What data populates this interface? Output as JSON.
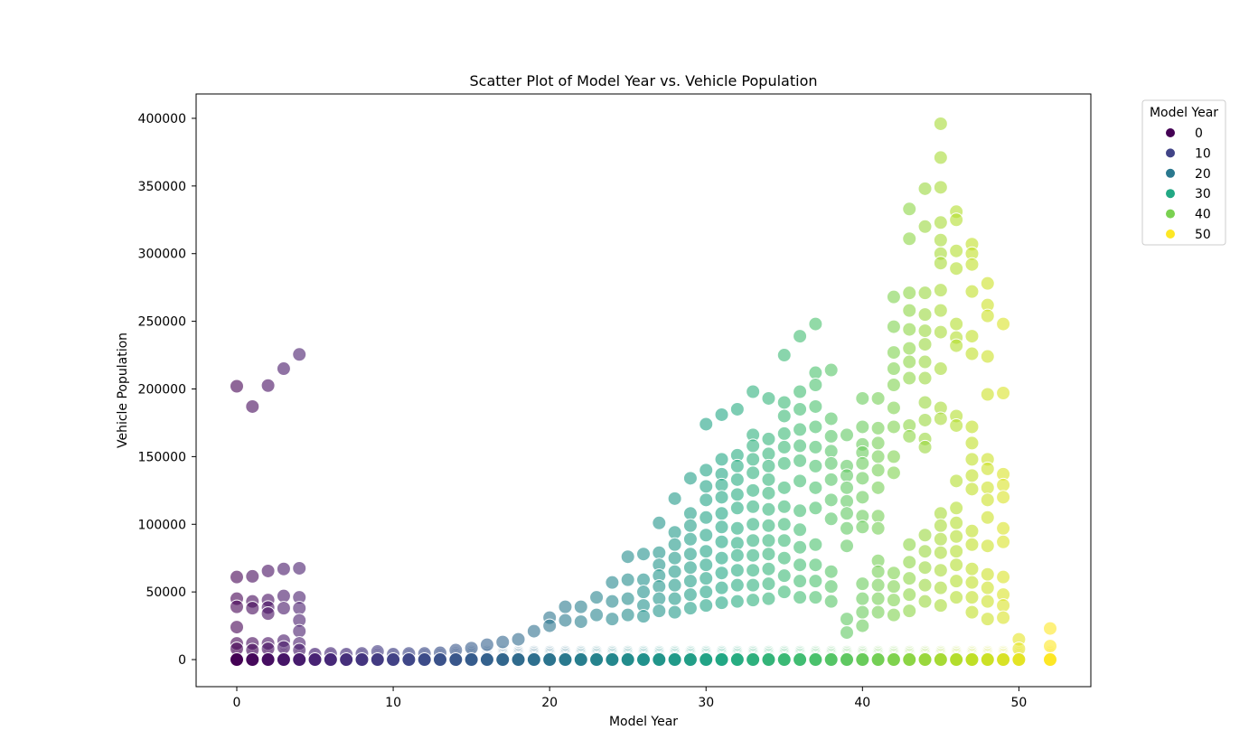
{
  "chart_data": {
    "type": "scatter",
    "title": "Scatter Plot of Model Year vs. Vehicle Population",
    "xlabel": "Model Year",
    "ylabel": "Vehicle Population",
    "xlim": [
      -2.6,
      54.6
    ],
    "ylim": [
      -20000,
      418000
    ],
    "xticks": [
      0,
      10,
      20,
      30,
      40,
      50
    ],
    "yticks": [
      0,
      50000,
      100000,
      150000,
      200000,
      250000,
      300000,
      350000,
      400000
    ],
    "grid": false,
    "colormap": "viridis",
    "hue_range": [
      0,
      52
    ],
    "marker_opacity": 0.6,
    "legend": {
      "title": "Model Year",
      "placement": "outside-top-right",
      "entries": [
        {
          "label": "0",
          "color": "#440154"
        },
        {
          "label": "10",
          "color": "#414487"
        },
        {
          "label": "20",
          "color": "#2a788e"
        },
        {
          "label": "30",
          "color": "#22a884"
        },
        {
          "label": "40",
          "color": "#7ad151"
        },
        {
          "label": "50",
          "color": "#fde725"
        }
      ]
    },
    "points": [
      [
        0,
        202000
      ],
      [
        1,
        187000
      ],
      [
        2,
        202500
      ],
      [
        3,
        215000
      ],
      [
        4,
        225500
      ],
      [
        0,
        61000
      ],
      [
        1,
        61500
      ],
      [
        2,
        65500
      ],
      [
        3,
        67000
      ],
      [
        4,
        67500
      ],
      [
        0,
        45000
      ],
      [
        1,
        43000
      ],
      [
        2,
        44000
      ],
      [
        3,
        47000
      ],
      [
        4,
        46000
      ],
      [
        0,
        39000
      ],
      [
        1,
        38000
      ],
      [
        2,
        38500
      ],
      [
        3,
        38000
      ],
      [
        4,
        38000
      ],
      [
        0,
        24000
      ],
      [
        2,
        34000
      ],
      [
        4,
        29000
      ],
      [
        4,
        21000
      ],
      [
        0,
        12000
      ],
      [
        1,
        12000
      ],
      [
        2,
        12000
      ],
      [
        3,
        14000
      ],
      [
        4,
        12000
      ],
      [
        0,
        8000
      ],
      [
        1,
        7000
      ],
      [
        2,
        8000
      ],
      [
        3,
        9000
      ],
      [
        4,
        7000
      ],
      [
        5,
        4000
      ],
      [
        6,
        4500
      ],
      [
        7,
        4000
      ],
      [
        8,
        4500
      ],
      [
        9,
        6000
      ],
      [
        10,
        4000
      ],
      [
        11,
        4500
      ],
      [
        12,
        4500
      ],
      [
        13,
        5000
      ],
      [
        14,
        7000
      ],
      [
        15,
        8500
      ],
      [
        16,
        11000
      ],
      [
        17,
        13000
      ],
      [
        18,
        15000
      ],
      [
        19,
        21000
      ],
      [
        20,
        31000
      ],
      [
        20,
        25000
      ],
      [
        21,
        39000
      ],
      [
        21,
        29000
      ],
      [
        22,
        39000
      ],
      [
        22,
        28000
      ],
      [
        23,
        46000
      ],
      [
        23,
        33000
      ],
      [
        24,
        57000
      ],
      [
        24,
        43000
      ],
      [
        24,
        30000
      ],
      [
        25,
        76000
      ],
      [
        25,
        59000
      ],
      [
        25,
        45000
      ],
      [
        25,
        33000
      ],
      [
        26,
        78000
      ],
      [
        26,
        59000
      ],
      [
        26,
        50000
      ],
      [
        26,
        40000
      ],
      [
        26,
        32000
      ],
      [
        27,
        101000
      ],
      [
        27,
        79000
      ],
      [
        27,
        70000
      ],
      [
        27,
        62000
      ],
      [
        27,
        54000
      ],
      [
        27,
        45000
      ],
      [
        27,
        36000
      ],
      [
        28,
        119000
      ],
      [
        28,
        94000
      ],
      [
        28,
        85000
      ],
      [
        28,
        75000
      ],
      [
        28,
        65000
      ],
      [
        28,
        55000
      ],
      [
        28,
        45000
      ],
      [
        28,
        35000
      ],
      [
        29,
        134000
      ],
      [
        29,
        108000
      ],
      [
        29,
        99000
      ],
      [
        29,
        89000
      ],
      [
        29,
        78000
      ],
      [
        29,
        68000
      ],
      [
        29,
        58000
      ],
      [
        29,
        48000
      ],
      [
        29,
        38000
      ],
      [
        30,
        174000
      ],
      [
        30,
        140000
      ],
      [
        30,
        128000
      ],
      [
        30,
        118000
      ],
      [
        30,
        105000
      ],
      [
        30,
        92000
      ],
      [
        30,
        80000
      ],
      [
        30,
        70000
      ],
      [
        30,
        60000
      ],
      [
        30,
        50000
      ],
      [
        30,
        40000
      ],
      [
        31,
        181000
      ],
      [
        31,
        148000
      ],
      [
        31,
        137000
      ],
      [
        31,
        129000
      ],
      [
        31,
        120000
      ],
      [
        31,
        108000
      ],
      [
        31,
        98000
      ],
      [
        31,
        87000
      ],
      [
        31,
        75000
      ],
      [
        31,
        64000
      ],
      [
        31,
        53000
      ],
      [
        31,
        42000
      ],
      [
        32,
        185000
      ],
      [
        32,
        151000
      ],
      [
        32,
        143000
      ],
      [
        32,
        133000
      ],
      [
        32,
        122000
      ],
      [
        32,
        112000
      ],
      [
        32,
        97000
      ],
      [
        32,
        86000
      ],
      [
        32,
        77000
      ],
      [
        32,
        66000
      ],
      [
        32,
        55000
      ],
      [
        32,
        43000
      ],
      [
        33,
        198000
      ],
      [
        33,
        166000
      ],
      [
        33,
        158000
      ],
      [
        33,
        148000
      ],
      [
        33,
        138000
      ],
      [
        33,
        125000
      ],
      [
        33,
        113000
      ],
      [
        33,
        100000
      ],
      [
        33,
        88000
      ],
      [
        33,
        77000
      ],
      [
        33,
        66000
      ],
      [
        33,
        55000
      ],
      [
        33,
        44000
      ],
      [
        34,
        193000
      ],
      [
        34,
        163000
      ],
      [
        34,
        152000
      ],
      [
        34,
        143000
      ],
      [
        34,
        133000
      ],
      [
        34,
        123000
      ],
      [
        34,
        111000
      ],
      [
        34,
        99000
      ],
      [
        34,
        88000
      ],
      [
        34,
        78000
      ],
      [
        34,
        67000
      ],
      [
        34,
        56000
      ],
      [
        34,
        45000
      ],
      [
        35,
        225000
      ],
      [
        35,
        190000
      ],
      [
        35,
        180000
      ],
      [
        35,
        167000
      ],
      [
        35,
        157000
      ],
      [
        35,
        145000
      ],
      [
        35,
        127000
      ],
      [
        35,
        113000
      ],
      [
        35,
        100000
      ],
      [
        35,
        88000
      ],
      [
        35,
        75000
      ],
      [
        35,
        62000
      ],
      [
        35,
        50000
      ],
      [
        36,
        239000
      ],
      [
        36,
        198000
      ],
      [
        36,
        185000
      ],
      [
        36,
        170000
      ],
      [
        36,
        158000
      ],
      [
        36,
        147000
      ],
      [
        36,
        132000
      ],
      [
        36,
        110000
      ],
      [
        36,
        96000
      ],
      [
        36,
        83000
      ],
      [
        36,
        70000
      ],
      [
        36,
        58000
      ],
      [
        36,
        46000
      ],
      [
        37,
        248000
      ],
      [
        37,
        212000
      ],
      [
        37,
        203000
      ],
      [
        37,
        187000
      ],
      [
        37,
        172000
      ],
      [
        37,
        157000
      ],
      [
        37,
        143000
      ],
      [
        37,
        127000
      ],
      [
        37,
        112000
      ],
      [
        37,
        85000
      ],
      [
        37,
        70000
      ],
      [
        37,
        58000
      ],
      [
        37,
        46000
      ],
      [
        38,
        214000
      ],
      [
        38,
        178000
      ],
      [
        38,
        165000
      ],
      [
        38,
        154000
      ],
      [
        38,
        145000
      ],
      [
        38,
        133000
      ],
      [
        38,
        118000
      ],
      [
        38,
        104000
      ],
      [
        38,
        65000
      ],
      [
        38,
        54000
      ],
      [
        38,
        43000
      ],
      [
        39,
        166000
      ],
      [
        39,
        143000
      ],
      [
        39,
        136000
      ],
      [
        39,
        127000
      ],
      [
        39,
        117000
      ],
      [
        39,
        108000
      ],
      [
        39,
        97000
      ],
      [
        39,
        84000
      ],
      [
        39,
        30000
      ],
      [
        39,
        20000
      ],
      [
        40,
        193000
      ],
      [
        40,
        172000
      ],
      [
        40,
        159000
      ],
      [
        40,
        153000
      ],
      [
        40,
        145000
      ],
      [
        40,
        134000
      ],
      [
        40,
        120000
      ],
      [
        40,
        106000
      ],
      [
        40,
        98000
      ],
      [
        40,
        56000
      ],
      [
        40,
        45000
      ],
      [
        40,
        35000
      ],
      [
        40,
        25000
      ],
      [
        41,
        193000
      ],
      [
        41,
        171000
      ],
      [
        41,
        160000
      ],
      [
        41,
        150000
      ],
      [
        41,
        140000
      ],
      [
        41,
        127000
      ],
      [
        41,
        106000
      ],
      [
        41,
        97000
      ],
      [
        41,
        73000
      ],
      [
        41,
        65000
      ],
      [
        41,
        55000
      ],
      [
        41,
        45000
      ],
      [
        41,
        35000
      ],
      [
        42,
        268000
      ],
      [
        42,
        246000
      ],
      [
        42,
        227000
      ],
      [
        42,
        215000
      ],
      [
        42,
        203000
      ],
      [
        42,
        186000
      ],
      [
        42,
        172000
      ],
      [
        42,
        150000
      ],
      [
        42,
        138000
      ],
      [
        42,
        64000
      ],
      [
        42,
        54000
      ],
      [
        42,
        44000
      ],
      [
        42,
        33000
      ],
      [
        43,
        333000
      ],
      [
        43,
        311000
      ],
      [
        43,
        271000
      ],
      [
        43,
        258000
      ],
      [
        43,
        244000
      ],
      [
        43,
        230000
      ],
      [
        43,
        220000
      ],
      [
        43,
        208000
      ],
      [
        43,
        173000
      ],
      [
        43,
        165000
      ],
      [
        43,
        85000
      ],
      [
        43,
        72000
      ],
      [
        43,
        60000
      ],
      [
        43,
        48000
      ],
      [
        43,
        36000
      ],
      [
        44,
        348000
      ],
      [
        44,
        320000
      ],
      [
        44,
        271000
      ],
      [
        44,
        255000
      ],
      [
        44,
        243000
      ],
      [
        44,
        233000
      ],
      [
        44,
        220000
      ],
      [
        44,
        208000
      ],
      [
        44,
        190000
      ],
      [
        44,
        177000
      ],
      [
        44,
        163000
      ],
      [
        44,
        157000
      ],
      [
        44,
        92000
      ],
      [
        44,
        80000
      ],
      [
        44,
        68000
      ],
      [
        44,
        55000
      ],
      [
        44,
        43000
      ],
      [
        45,
        396000
      ],
      [
        45,
        371000
      ],
      [
        45,
        349000
      ],
      [
        45,
        323000
      ],
      [
        45,
        310000
      ],
      [
        45,
        300000
      ],
      [
        45,
        293000
      ],
      [
        45,
        273000
      ],
      [
        45,
        258000
      ],
      [
        45,
        242000
      ],
      [
        45,
        215000
      ],
      [
        45,
        186000
      ],
      [
        45,
        178000
      ],
      [
        45,
        108000
      ],
      [
        45,
        99000
      ],
      [
        45,
        89000
      ],
      [
        45,
        79000
      ],
      [
        45,
        66000
      ],
      [
        45,
        53000
      ],
      [
        45,
        40000
      ],
      [
        46,
        331000
      ],
      [
        46,
        325000
      ],
      [
        46,
        302000
      ],
      [
        46,
        289000
      ],
      [
        46,
        248000
      ],
      [
        46,
        238000
      ],
      [
        46,
        232000
      ],
      [
        46,
        180000
      ],
      [
        46,
        173000
      ],
      [
        46,
        132000
      ],
      [
        46,
        112000
      ],
      [
        46,
        101000
      ],
      [
        46,
        91000
      ],
      [
        46,
        80000
      ],
      [
        46,
        70000
      ],
      [
        46,
        58000
      ],
      [
        46,
        46000
      ],
      [
        47,
        307000
      ],
      [
        47,
        300000
      ],
      [
        47,
        292000
      ],
      [
        47,
        272000
      ],
      [
        47,
        239000
      ],
      [
        47,
        226000
      ],
      [
        47,
        172000
      ],
      [
        47,
        160000
      ],
      [
        47,
        148000
      ],
      [
        47,
        136000
      ],
      [
        47,
        126000
      ],
      [
        47,
        95000
      ],
      [
        47,
        85000
      ],
      [
        47,
        67000
      ],
      [
        47,
        57000
      ],
      [
        47,
        46000
      ],
      [
        47,
        35000
      ],
      [
        48,
        278000
      ],
      [
        48,
        262000
      ],
      [
        48,
        254000
      ],
      [
        48,
        224000
      ],
      [
        48,
        196000
      ],
      [
        48,
        148000
      ],
      [
        48,
        141000
      ],
      [
        48,
        127000
      ],
      [
        48,
        118000
      ],
      [
        48,
        105000
      ],
      [
        48,
        84000
      ],
      [
        48,
        63000
      ],
      [
        48,
        53000
      ],
      [
        48,
        43000
      ],
      [
        48,
        30000
      ],
      [
        49,
        248000
      ],
      [
        49,
        197000
      ],
      [
        49,
        137000
      ],
      [
        49,
        129000
      ],
      [
        49,
        120000
      ],
      [
        49,
        97000
      ],
      [
        49,
        87000
      ],
      [
        49,
        61000
      ],
      [
        49,
        48000
      ],
      [
        49,
        40000
      ],
      [
        49,
        31000
      ],
      [
        50,
        15000
      ],
      [
        50,
        8000
      ],
      [
        52,
        23000
      ],
      [
        52,
        10000
      ]
    ]
  }
}
